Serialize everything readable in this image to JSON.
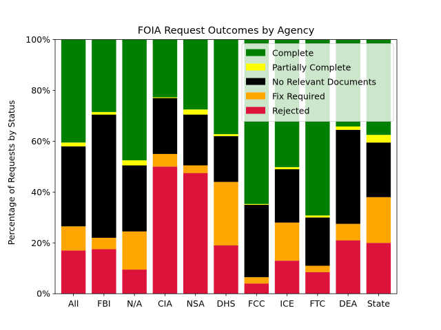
{
  "chart_data": {
    "type": "bar",
    "stacked": true,
    "title": "FOIA Request Outcomes by Agency",
    "xlabel": "",
    "ylabel": "Percentage of Requests by Status",
    "ylim": [
      0,
      100
    ],
    "y_ticks": [
      "0%",
      "20%",
      "40%",
      "60%",
      "80%",
      "100%"
    ],
    "y_tick_values": [
      0,
      20,
      40,
      60,
      80,
      100
    ],
    "grid": false,
    "legend_position": "top-right",
    "categories": [
      "All",
      "FBI",
      "N/A",
      "CIA",
      "NSA",
      "DHS",
      "FCC",
      "ICE",
      "FTC",
      "DEA",
      "State"
    ],
    "series": [
      {
        "name": "Rejected",
        "color": "#dc143c",
        "values": [
          17,
          17.5,
          9.5,
          50,
          47.5,
          19,
          4,
          13,
          8.5,
          21,
          20
        ]
      },
      {
        "name": "Fix Required",
        "color": "#ffa500",
        "values": [
          9.5,
          4.5,
          15,
          5,
          3,
          25,
          2.5,
          15,
          2.5,
          6.5,
          18
        ]
      },
      {
        "name": "No Relevant Documents",
        "color": "#000000",
        "values": [
          31.5,
          48.5,
          26,
          22,
          20,
          18,
          28.5,
          21,
          19,
          37,
          21.5
        ]
      },
      {
        "name": "Partially Complete",
        "color": "#ffff00",
        "values": [
          1.5,
          1,
          2,
          0.3,
          2,
          0.8,
          0.3,
          0.8,
          0.8,
          1.3,
          3
        ]
      },
      {
        "name": "Complete",
        "color": "#008000",
        "values": [
          40.5,
          28.5,
          47.5,
          22.7,
          27.5,
          37.2,
          64.7,
          50.2,
          69.2,
          34.2,
          37.5
        ]
      }
    ],
    "legend_order": [
      "Complete",
      "Partially Complete",
      "No Relevant Documents",
      "Fix Required",
      "Rejected"
    ]
  }
}
